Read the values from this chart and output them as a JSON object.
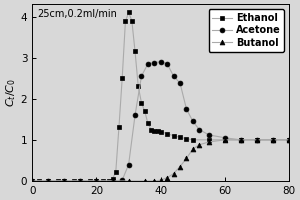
{
  "annotation": "25cm,0.2ml/min",
  "ylabel": "C_t/C_0",
  "xlim": [
    0,
    80
  ],
  "ylim": [
    0,
    4.3
  ],
  "yticks": [
    0,
    1,
    2,
    3,
    4
  ],
  "xticks": [
    0,
    20,
    40,
    60,
    80
  ],
  "legend": [
    "Ethanol",
    "Acetone",
    "Butanol"
  ],
  "ethanol_x": [
    0,
    2,
    5,
    8,
    10,
    13,
    15,
    18,
    20,
    22,
    24,
    25,
    26,
    27,
    28,
    29,
    30,
    31,
    32,
    33,
    34,
    35,
    36,
    37,
    38,
    39,
    40,
    42,
    44,
    46,
    48,
    50,
    55,
    60,
    65,
    70,
    75,
    80
  ],
  "ethanol_y": [
    0,
    0,
    0,
    0,
    0,
    0,
    0,
    0,
    0,
    0,
    0,
    0.05,
    0.22,
    1.32,
    2.5,
    3.88,
    4.1,
    3.9,
    3.15,
    2.3,
    1.9,
    1.7,
    1.4,
    1.25,
    1.22,
    1.22,
    1.2,
    1.15,
    1.1,
    1.06,
    1.03,
    1.0,
    1.0,
    1.0,
    1.0,
    1.0,
    1.0,
    1.0
  ],
  "acetone_x": [
    0,
    5,
    10,
    15,
    20,
    25,
    28,
    30,
    32,
    34,
    36,
    38,
    40,
    42,
    44,
    46,
    48,
    50,
    52,
    55,
    60,
    65,
    70,
    75,
    80
  ],
  "acetone_y": [
    0,
    0,
    0,
    0,
    0,
    0,
    0.02,
    0.4,
    1.6,
    2.55,
    2.85,
    2.88,
    2.9,
    2.85,
    2.55,
    2.38,
    1.75,
    1.45,
    1.25,
    1.12,
    1.05,
    1.0,
    1.0,
    1.0,
    1.0
  ],
  "butanol_x": [
    0,
    5,
    10,
    15,
    20,
    25,
    30,
    35,
    38,
    40,
    42,
    44,
    46,
    48,
    50,
    52,
    55,
    60,
    65,
    70,
    75,
    80
  ],
  "butanol_y": [
    0,
    0,
    0,
    0,
    0,
    0,
    0,
    0,
    0,
    0.02,
    0.08,
    0.18,
    0.35,
    0.55,
    0.78,
    0.88,
    0.95,
    1.0,
    1.0,
    1.0,
    1.0,
    1.0
  ],
  "line_color": "#aaaaaa",
  "bg_color": "#d8d8d8",
  "marker_ethanol": "s",
  "marker_acetone": "o",
  "marker_butanol": "^",
  "marker_size": 3.5,
  "linewidth": 0.8
}
